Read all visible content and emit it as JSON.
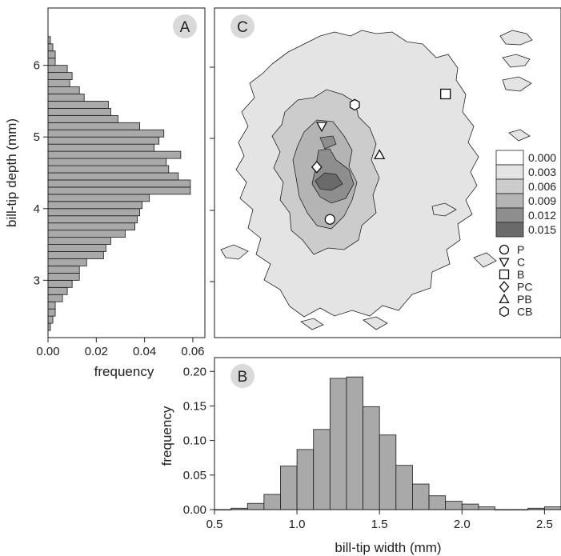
{
  "colors": {
    "bar_fill": "#a9a9a9",
    "bar_stroke": "#1a1a1a",
    "contour_levels": [
      "#ffffff",
      "#e4e4e4",
      "#cccccc",
      "#b4b4b4",
      "#8e8e8e",
      "#6a6a6a"
    ],
    "panel_label_bg": "#d9d9d9"
  },
  "chart_data": [
    {
      "panel": "A",
      "panel_label": "A",
      "type": "bar",
      "orientation": "horizontal",
      "xlabel": "frequency",
      "ylabel": "bill-tip depth (mm)",
      "xlim": [
        0,
        0.065
      ],
      "ylim": [
        2.2,
        6.8
      ],
      "xticks": [
        0,
        0.02,
        0.04,
        0.06
      ],
      "xtick_labels": [
        "0.00",
        "0.02",
        "0.04",
        "0.06"
      ],
      "yticks": [
        3,
        4,
        5,
        6
      ],
      "ytick_labels": [
        "3",
        "4",
        "5",
        "6"
      ],
      "bin_width": 0.1,
      "bin_start": 2.3,
      "values": [
        0.001,
        0.002,
        0.003,
        0.003,
        0.006,
        0.008,
        0.01,
        0.013,
        0.013,
        0.016,
        0.023,
        0.024,
        0.026,
        0.032,
        0.036,
        0.037,
        0.038,
        0.039,
        0.042,
        0.059,
        0.059,
        0.054,
        0.05,
        0.049,
        0.055,
        0.044,
        0.046,
        0.048,
        0.038,
        0.029,
        0.026,
        0.025,
        0.015,
        0.013,
        0.009,
        0.01,
        0.008,
        0.003,
        0.003,
        0.002,
        0.001
      ]
    },
    {
      "panel": "B",
      "panel_label": "B",
      "type": "bar",
      "orientation": "vertical",
      "xlabel": "bill-tip width (mm)",
      "ylabel": "frequency",
      "xlim": [
        0.5,
        2.6
      ],
      "ylim": [
        0,
        0.22
      ],
      "xticks": [
        0.5,
        1.0,
        1.5,
        2.0,
        2.5
      ],
      "xtick_labels": [
        "0.5",
        "1.0",
        "1.5",
        "2.0",
        "2.5"
      ],
      "yticks": [
        0,
        0.05,
        0.1,
        0.15,
        0.2
      ],
      "ytick_labels": [
        "0.00",
        "0.05",
        "0.10",
        "0.15",
        "0.20"
      ],
      "bin_width": 0.1,
      "bin_start": 0.5,
      "values": [
        0.0,
        0.002,
        0.009,
        0.022,
        0.063,
        0.087,
        0.116,
        0.19,
        0.192,
        0.149,
        0.108,
        0.064,
        0.037,
        0.02,
        0.012,
        0.008,
        0.004,
        0.0,
        0.0,
        0.002,
        0.004
      ]
    },
    {
      "panel": "C",
      "panel_label": "C",
      "type": "heatmap",
      "subtype": "filled-contour",
      "xlim": [
        0.5,
        2.6
      ],
      "ylim": [
        2.2,
        6.8
      ],
      "legend_position": "right",
      "contour_levels": [
        "0.000",
        "0.003",
        "0.006",
        "0.009",
        "0.012",
        "0.015"
      ],
      "markers": [
        {
          "label": "P",
          "shape": "circle",
          "x": 1.2,
          "y": 3.85
        },
        {
          "label": "C",
          "shape": "triangle-down",
          "x": 1.15,
          "y": 5.15
        },
        {
          "label": "B",
          "shape": "square",
          "x": 1.9,
          "y": 5.6
        },
        {
          "label": "PC",
          "shape": "diamond",
          "x": 1.12,
          "y": 4.58
        },
        {
          "label": "PB",
          "shape": "triangle-up",
          "x": 1.5,
          "y": 4.75
        },
        {
          "label": "CB",
          "shape": "hexagon",
          "x": 1.35,
          "y": 5.45
        }
      ]
    }
  ]
}
